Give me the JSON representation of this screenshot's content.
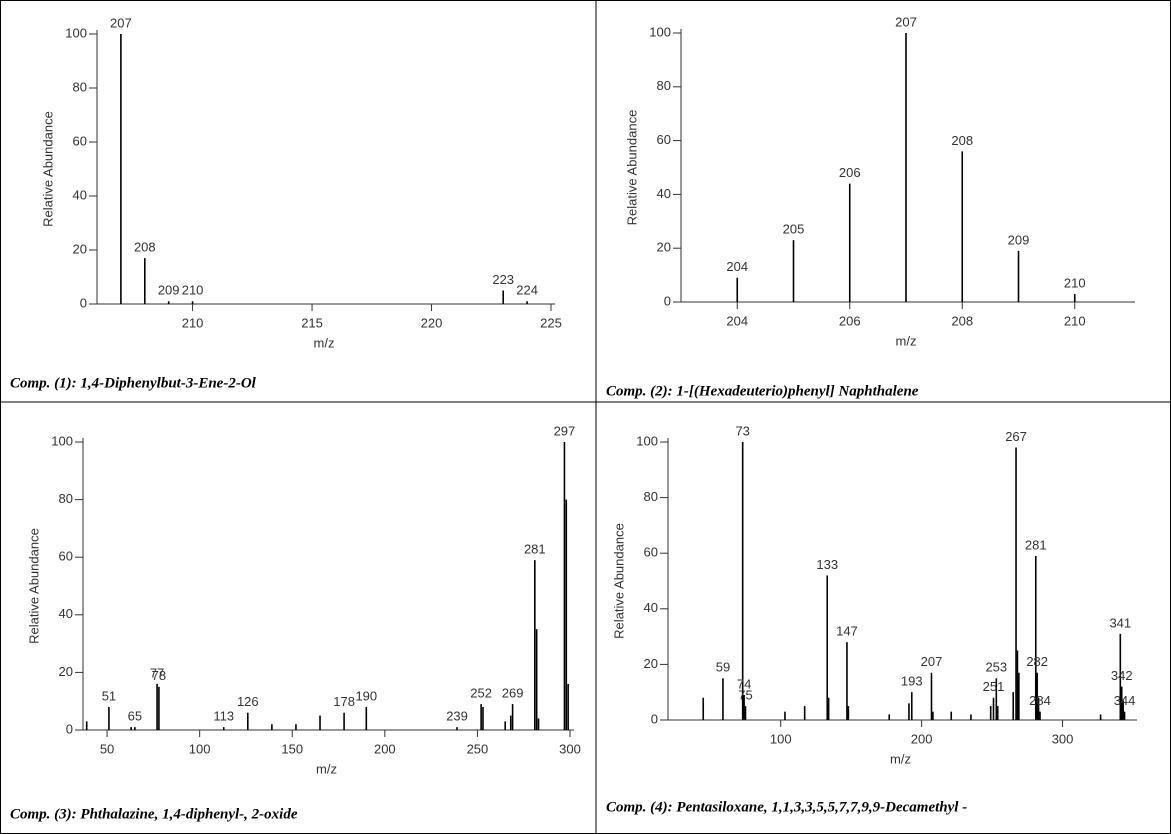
{
  "chart_data": [
    {
      "type": "stem",
      "caption": "Comp. (1): 1,4-Diphenylbut-3-Ene-2-Ol",
      "x_label": "m/z",
      "y_label": "Relative Abundance",
      "color": "#000000",
      "x": [
        207,
        208,
        209,
        210,
        223,
        224
      ],
      "values": [
        100,
        17,
        1,
        1,
        5,
        1
      ],
      "peak_labels": [
        207,
        208,
        209,
        210,
        223,
        224
      ],
      "xlim": [
        206,
        225
      ],
      "xticks": [
        210,
        215,
        220,
        225
      ],
      "ylim": [
        0,
        100
      ],
      "yticks": [
        0,
        20,
        40,
        60,
        80,
        100
      ]
    },
    {
      "type": "stem",
      "caption": "Comp. (2): 1-[(Hexadeuterio)phenyl] Naphthalene",
      "x_label": "m/z",
      "y_label": "Relative Abundance",
      "color": "#000000",
      "x": [
        204,
        205,
        206,
        207,
        208,
        209,
        210
      ],
      "values": [
        9,
        23,
        44,
        100,
        56,
        19,
        3
      ],
      "peak_labels": [
        204,
        205,
        206,
        207,
        208,
        209,
        210
      ],
      "xlim": [
        203,
        211
      ],
      "xticks": [
        204,
        206,
        208,
        210
      ],
      "ylim": [
        0,
        100
      ],
      "yticks": [
        0,
        20,
        40,
        60,
        80,
        100
      ]
    },
    {
      "type": "stem",
      "caption": "Comp. (3): Phthalazine, 1,4-diphenyl-, 2-oxide",
      "x_label": "m/z",
      "y_label": "Relative Abundance",
      "color": "#000000",
      "x": [
        39,
        51,
        63,
        65,
        77,
        78,
        113,
        126,
        139,
        152,
        165,
        178,
        190,
        239,
        252,
        253,
        265,
        268,
        269,
        281,
        282,
        283,
        297,
        298,
        299
      ],
      "values": [
        3,
        8,
        1,
        1,
        16,
        15,
        1,
        6,
        2,
        2,
        5,
        6,
        8,
        1,
        9,
        8,
        3,
        5,
        9,
        59,
        35,
        4,
        100,
        80,
        16
      ],
      "peak_labels": [
        51,
        65,
        77,
        78,
        113,
        126,
        178,
        190,
        239,
        252,
        269,
        281,
        297
      ],
      "xlim": [
        37,
        300
      ],
      "xticks": [
        50,
        100,
        150,
        200,
        250,
        300
      ],
      "ylim": [
        0,
        100
      ],
      "yticks": [
        0,
        20,
        40,
        60,
        80,
        100
      ]
    },
    {
      "type": "stem",
      "caption": "Comp. (4): Pentasiloxane, 1,1,3,3,5,5,7,7,9,9-Decamethyl -",
      "x_label": "m/z",
      "y_label": "Relative Abundance",
      "color": "#000000",
      "x": [
        45,
        59,
        73,
        74,
        75,
        103,
        117,
        133,
        134,
        147,
        148,
        177,
        191,
        193,
        207,
        208,
        221,
        235,
        249,
        251,
        253,
        254,
        265,
        267,
        268,
        269,
        281,
        282,
        283,
        284,
        327,
        341,
        342,
        343,
        344
      ],
      "values": [
        8,
        15,
        100,
        9,
        5,
        3,
        5,
        52,
        8,
        28,
        5,
        2,
        6,
        10,
        17,
        3,
        3,
        2,
        5,
        8,
        15,
        5,
        10,
        98,
        25,
        17,
        59,
        17,
        8,
        3,
        2,
        31,
        12,
        7,
        3
      ],
      "peak_labels": [
        59,
        73,
        74,
        75,
        133,
        147,
        193,
        207,
        251,
        253,
        267,
        281,
        282,
        284,
        341,
        342,
        344
      ],
      "xlim": [
        20,
        350
      ],
      "xticks": [
        100,
        200,
        300
      ],
      "ylim": [
        0,
        100
      ],
      "yticks": [
        0,
        20,
        40,
        60,
        80,
        100
      ]
    }
  ]
}
